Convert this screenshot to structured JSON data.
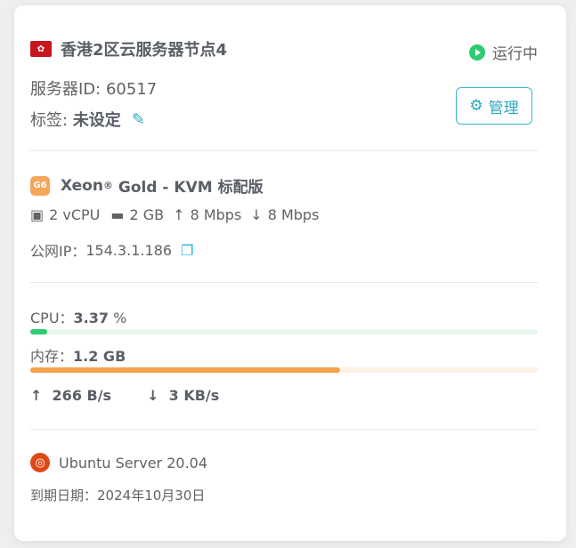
{
  "server": {
    "name": "香港2区云服务器节点4",
    "status": "运行中",
    "id_label": "服务器ID:",
    "id": "60517",
    "tag_label": "标签:",
    "tag_value": "未设定",
    "manage_label": "管理"
  },
  "plan": {
    "badge": "G6",
    "name": "Xeon",
    "reg": "®",
    "name_rest": " Gold - KVM 标配版",
    "cpu": "2 vCPU",
    "ram": "2 GB",
    "up": "8 Mbps",
    "down": "8 Mbps",
    "ip_label": "公网IP：",
    "ip": "154.3.1.186"
  },
  "usage": {
    "cpu_label": "CPU：",
    "cpu_value": "3.37",
    "cpu_unit": " %",
    "cpu_percent": 3.37,
    "mem_label": "内存：",
    "mem_value": "1.2 GB",
    "mem_percent": 61,
    "net_up": "266 B/s",
    "net_down": "3 KB/s"
  },
  "os": {
    "name": "Ubuntu Server 20.04",
    "expiry_label": "到期日期：",
    "expiry": "2024年10月30日"
  },
  "colors": {
    "running": "#2ecc71",
    "accent": "#2aa7c0",
    "cpu_bar": "#2ecc71",
    "mem_bar": "#f5a14d",
    "ubuntu": "#dd4814"
  }
}
